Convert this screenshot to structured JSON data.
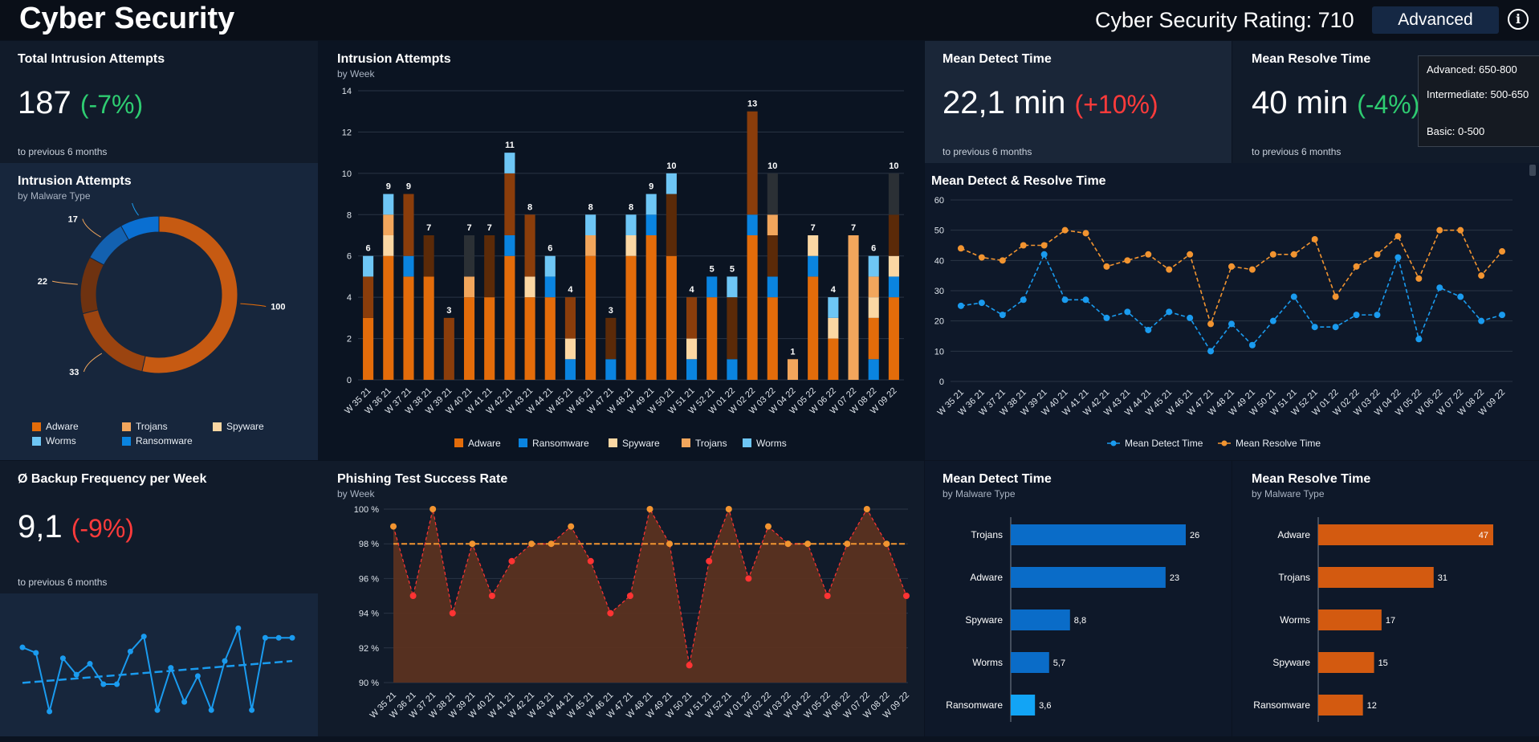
{
  "header": {
    "title": "Cyber Security",
    "rating_label": "Cyber Security Rating: 710",
    "level_button": "Advanced",
    "info_icon": "info-icon",
    "tooltip": [
      "Advanced: 650-800",
      "Intermediate: 500-650",
      "Basic: 0-500"
    ]
  },
  "kpis": {
    "total": {
      "title": "Total Intrusion Attempts",
      "value": "187",
      "change": "(-7%)",
      "note": "to previous 6 months"
    },
    "detect": {
      "title": "Mean Detect Time",
      "value": "22,1 min",
      "change": "(+10%)",
      "note": "to previous 6 months"
    },
    "resolve": {
      "title": "Mean Resolve Time",
      "value": "40 min",
      "change": "(-4%)",
      "note": "to previous 6 months"
    },
    "backup": {
      "title": "Ø Backup Frequency per Week",
      "value": "9,1",
      "change": "(-9%)",
      "note": "to previous 6 months"
    }
  },
  "panels": {
    "donut": {
      "title": "Intrusion Attempts",
      "subtitle": "by Malware Type"
    },
    "bars": {
      "title": "Intrusion Attempts",
      "subtitle": "by Week"
    },
    "lines": {
      "title": "Mean Detect & Resolve Time"
    },
    "phishing": {
      "title": "Phishing Test Success Rate",
      "subtitle": "by Week"
    },
    "detect_type": {
      "title": "Mean Detect Time",
      "subtitle": "by Malware Type"
    },
    "resolve_type": {
      "title": "Mean Resolve Time",
      "subtitle": "by Malware Type"
    }
  },
  "colors": {
    "adware": "#e36c0a",
    "adware_dark": "#5b2a08",
    "adware_mid": "#8a3d0b",
    "ransomware": "#0a84e0",
    "spyware": "#fbd7a3",
    "trojans": "#f2a65c",
    "worms": "#6ec6f5",
    "dark_seg": "#2b3035",
    "detect_line": "#1a9bef",
    "resolve_line": "#f29430",
    "phish_line": "#ff3333",
    "phish_fill": "#5b3220"
  },
  "chart_data": [
    {
      "id": "donut",
      "type": "pie",
      "labels": [
        "Adware",
        "Trojans",
        "Spyware",
        "Worms",
        "Ransomware"
      ],
      "values": [
        100,
        33,
        22,
        17,
        15
      ],
      "legend": [
        "Adware",
        "Trojans",
        "Spyware",
        "Worms",
        "Ransomware"
      ]
    },
    {
      "id": "weekly",
      "type": "bar",
      "categories": [
        "W 35 21",
        "W 36 21",
        "W 37 21",
        "W 38 21",
        "W 39 21",
        "W 40 21",
        "W 41 21",
        "W 42 21",
        "W 43 21",
        "W 44 21",
        "W 45 21",
        "W 46 21",
        "W 47 21",
        "W 48 21",
        "W 49 21",
        "W 50 21",
        "W 51 21",
        "W 52 21",
        "W 01 22",
        "W 02 22",
        "W 03 22",
        "W 04 22",
        "W 05 22",
        "W 06 22",
        "W 07 22",
        "W 08 22",
        "W 09 22"
      ],
      "totals": [
        6,
        9,
        9,
        7,
        3,
        7,
        7,
        11,
        8,
        6,
        4,
        8,
        3,
        8,
        9,
        10,
        4,
        5,
        5,
        13,
        10,
        1,
        7,
        4,
        7,
        6,
        10
      ],
      "segments": [
        [
          [
            "adware",
            3
          ],
          [
            "adware_mid",
            2
          ],
          [
            "worms",
            1
          ]
        ],
        [
          [
            "adware",
            6
          ],
          [
            "spyware",
            1
          ],
          [
            "trojans",
            1
          ],
          [
            "worms",
            1
          ]
        ],
        [
          [
            "adware",
            5
          ],
          [
            "ransomware",
            1
          ],
          [
            "adware_mid",
            3
          ]
        ],
        [
          [
            "adware",
            5
          ],
          [
            "adware_dark",
            2
          ]
        ],
        [
          [
            "adware_mid",
            3
          ]
        ],
        [
          [
            "adware",
            4
          ],
          [
            "trojans",
            1
          ],
          [
            "dark_seg",
            2
          ]
        ],
        [
          [
            "adware",
            4
          ],
          [
            "adware_dark",
            3
          ]
        ],
        [
          [
            "adware",
            6
          ],
          [
            "ransomware",
            1
          ],
          [
            "adware_mid",
            3
          ],
          [
            "worms",
            1
          ]
        ],
        [
          [
            "adware",
            4
          ],
          [
            "spyware",
            1
          ],
          [
            "adware_mid",
            3
          ]
        ],
        [
          [
            "adware",
            4
          ],
          [
            "ransomware",
            1
          ],
          [
            "worms",
            1
          ]
        ],
        [
          [
            "ransomware",
            1
          ],
          [
            "spyware",
            1
          ],
          [
            "adware_mid",
            2
          ]
        ],
        [
          [
            "adware",
            6
          ],
          [
            "trojans",
            1
          ],
          [
            "worms",
            1
          ]
        ],
        [
          [
            "ransomware",
            1
          ],
          [
            "adware_dark",
            2
          ]
        ],
        [
          [
            "adware",
            6
          ],
          [
            "spyware",
            1
          ],
          [
            "worms",
            1
          ]
        ],
        [
          [
            "adware",
            7
          ],
          [
            "ransomware",
            1
          ],
          [
            "worms",
            1
          ]
        ],
        [
          [
            "adware",
            6
          ],
          [
            "adware_dark",
            3
          ],
          [
            "worms",
            1
          ]
        ],
        [
          [
            "ransomware",
            1
          ],
          [
            "spyware",
            1
          ],
          [
            "adware_mid",
            2
          ]
        ],
        [
          [
            "adware",
            4
          ],
          [
            "ransomware",
            1
          ]
        ],
        [
          [
            "ransomware",
            1
          ],
          [
            "adware_dark",
            3
          ],
          [
            "worms",
            1
          ]
        ],
        [
          [
            "adware",
            7
          ],
          [
            "ransomware",
            1
          ],
          [
            "adware_mid",
            5
          ]
        ],
        [
          [
            "adware",
            4
          ],
          [
            "ransomware",
            1
          ],
          [
            "adware_dark",
            2
          ],
          [
            "trojans",
            1
          ],
          [
            "dark_seg",
            2
          ]
        ],
        [
          [
            "trojans",
            1
          ]
        ],
        [
          [
            "adware",
            5
          ],
          [
            "ransomware",
            1
          ],
          [
            "spyware",
            1
          ]
        ],
        [
          [
            "adware",
            2
          ],
          [
            "spyware",
            1
          ],
          [
            "worms",
            1
          ]
        ],
        [
          [
            "trojans",
            7
          ]
        ],
        [
          [
            "ransomware",
            1
          ],
          [
            "adware",
            2
          ],
          [
            "spyware",
            1
          ],
          [
            "trojans",
            1
          ],
          [
            "worms",
            1
          ]
        ],
        [
          [
            "adware",
            4
          ],
          [
            "ransomware",
            1
          ],
          [
            "spyware",
            1
          ],
          [
            "adware_dark",
            2
          ],
          [
            "dark_seg",
            2
          ]
        ]
      ],
      "legend": [
        "Adware",
        "Ransomware",
        "Spyware",
        "Trojans",
        "Worms"
      ],
      "ylim": [
        0,
        14
      ],
      "yticks": [
        0,
        2,
        4,
        6,
        8,
        10,
        12,
        14
      ]
    },
    {
      "id": "detect_resolve",
      "type": "line",
      "x": [
        "W 35 21",
        "W 36 21",
        "W 37 21",
        "W 38 21",
        "W 39 21",
        "W 40 21",
        "W 41 21",
        "W 42 21",
        "W 43 21",
        "W 44 21",
        "W 45 21",
        "W 46 21",
        "W 47 21",
        "W 48 21",
        "W 49 21",
        "W 50 21",
        "W 51 21",
        "W 52 21",
        "W 01 22",
        "W 02 22",
        "W 03 22",
        "W 04 22",
        "W 05 22",
        "W 06 22",
        "W 07 22",
        "W 08 22",
        "W 09 22"
      ],
      "series": [
        {
          "name": "Mean Detect Time",
          "values": [
            25,
            26,
            22,
            27,
            42,
            27,
            27,
            21,
            23,
            17,
            23,
            21,
            10,
            19,
            12,
            20,
            28,
            18,
            18,
            22,
            22,
            41,
            14,
            31,
            28,
            20,
            22
          ]
        },
        {
          "name": "Mean Resolve Time",
          "values": [
            44,
            41,
            40,
            45,
            45,
            50,
            49,
            38,
            40,
            42,
            37,
            42,
            19,
            38,
            37,
            42,
            42,
            47,
            28,
            38,
            42,
            48,
            34,
            50,
            50,
            35,
            43
          ]
        }
      ],
      "ylim": [
        0,
        60
      ],
      "yticks": [
        0,
        10,
        20,
        30,
        40,
        50,
        60
      ]
    },
    {
      "id": "phishing",
      "type": "area",
      "x": [
        "W 35 21",
        "W 36 21",
        "W 37 21",
        "W 38 21",
        "W 39 21",
        "W 40 21",
        "W 41 21",
        "W 42 21",
        "W 43 21",
        "W 44 21",
        "W 45 21",
        "W 46 21",
        "W 47 21",
        "W 48 21",
        "W 49 21",
        "W 50 21",
        "W 51 21",
        "W 52 21",
        "W 01 22",
        "W 02 22",
        "W 03 22",
        "W 04 22",
        "W 05 22",
        "W 06 22",
        "W 07 22",
        "W 08 22",
        "W 09 22"
      ],
      "values": [
        99,
        95,
        100,
        94,
        98,
        95,
        97,
        98,
        98,
        99,
        97,
        94,
        95,
        100,
        98,
        91,
        97,
        100,
        96,
        99,
        98,
        98,
        95,
        98,
        100,
        98,
        95
      ],
      "target": 98,
      "ylim": [
        90,
        100
      ],
      "yticks": [
        "90 %",
        "92 %",
        "94 %",
        "96 %",
        "98 %",
        "100 %"
      ]
    },
    {
      "id": "backup_sparkline",
      "type": "line",
      "values": [
        11.2,
        10.8,
        6.5,
        10.4,
        9.2,
        10.0,
        8.5,
        8.5,
        10.9,
        12.0,
        6.6,
        9.7,
        7.2,
        9.1,
        6.6,
        10.2,
        12.6,
        6.6,
        11.9,
        11.9,
        11.9
      ],
      "trend": [
        8.6,
        10.2
      ]
    },
    {
      "id": "detect_by_type",
      "type": "bar",
      "categories": [
        "Trojans",
        "Adware",
        "Spyware",
        "Worms",
        "Ransomware"
      ],
      "values": [
        26,
        23,
        8.8,
        5.7,
        3.6
      ],
      "labels": [
        "26",
        "23",
        "8,8",
        "5,7",
        "3,6"
      ],
      "xlim": [
        0,
        26
      ]
    },
    {
      "id": "resolve_by_type",
      "type": "bar",
      "categories": [
        "Adware",
        "Trojans",
        "Worms",
        "Spyware",
        "Ransomware"
      ],
      "values": [
        47,
        31,
        17,
        15,
        12
      ],
      "labels": [
        "47",
        "31",
        "17",
        "15",
        "12"
      ],
      "xlim": [
        0,
        47
      ]
    }
  ]
}
